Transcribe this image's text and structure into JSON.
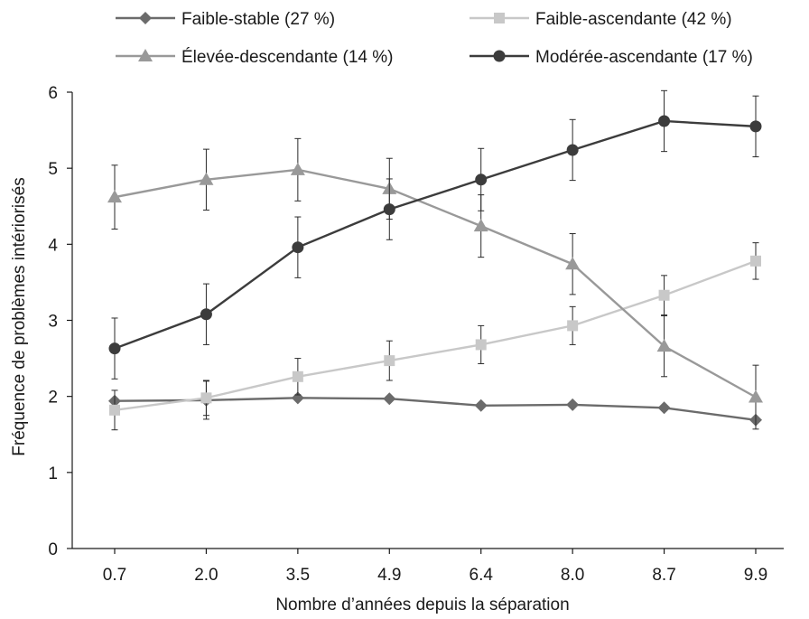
{
  "chart_data": {
    "type": "line",
    "title": "",
    "xlabel": "Nombre d’années depuis la séparation",
    "ylabel": "Fréquence de problèmes intériorisés",
    "categories": [
      "0.7",
      "2.0",
      "3.5",
      "4.9",
      "6.4",
      "8.0",
      "8.7",
      "9.9"
    ],
    "ylim": [
      0,
      6
    ],
    "yticks": [
      "0",
      "1",
      "2",
      "3",
      "4",
      "5",
      "6"
    ],
    "grid": false,
    "legend_position": "top",
    "series": [
      {
        "name": "Faible-stable (27 %)",
        "marker": "diamond",
        "color": "#6b6b6b",
        "values": [
          1.94,
          1.95,
          1.98,
          1.97,
          1.88,
          1.89,
          1.85,
          1.69
        ],
        "errors": [
          0.0,
          0.25,
          0.0,
          0.0,
          0.0,
          0.0,
          0.0,
          0.0
        ]
      },
      {
        "name": "Faible-ascendante (42 %)",
        "marker": "square",
        "color": "#c8c8c8",
        "values": [
          1.82,
          1.98,
          2.26,
          2.47,
          2.68,
          2.93,
          3.33,
          3.78
        ],
        "errors": [
          0.26,
          0.23,
          0.24,
          0.26,
          0.25,
          0.25,
          0.26,
          0.24
        ]
      },
      {
        "name": "Élevée-descendante (14 %)",
        "marker": "triangle",
        "color": "#999999",
        "values": [
          4.62,
          4.85,
          4.98,
          4.73,
          4.24,
          3.74,
          2.66,
          1.99
        ],
        "errors": [
          0.42,
          0.4,
          0.41,
          0.4,
          0.41,
          0.4,
          0.4,
          0.42
        ]
      },
      {
        "name": "Modérée-ascendante (17 %)",
        "marker": "circle",
        "color": "#3c3c3c",
        "values": [
          2.63,
          3.08,
          3.96,
          4.46,
          4.85,
          5.24,
          5.62,
          5.55
        ],
        "errors": [
          0.4,
          0.4,
          0.4,
          0.4,
          0.41,
          0.4,
          0.4,
          0.4
        ]
      }
    ]
  }
}
